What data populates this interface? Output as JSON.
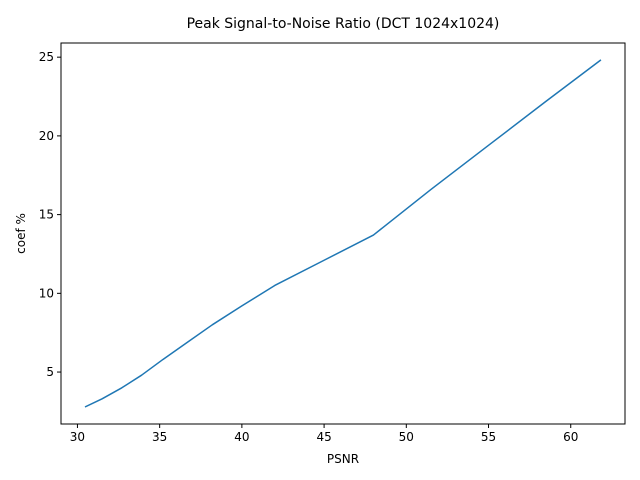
{
  "chart_data": {
    "type": "line",
    "title": "Peak Signal-to-Noise Ratio (DCT 1024x1024)",
    "xlabel": "PSNR",
    "ylabel": "coef %",
    "xlim": [
      29.0,
      63.3
    ],
    "ylim": [
      1.7,
      25.9
    ],
    "xticks": [
      30,
      35,
      40,
      45,
      50,
      55,
      60
    ],
    "yticks": [
      5,
      10,
      15,
      20,
      25
    ],
    "grid": false,
    "legend": "none",
    "series": [
      {
        "color": "#1f77b4",
        "x": [
          30.5,
          31.5,
          32.7,
          33.9,
          35.2,
          36.7,
          38.2,
          40.0,
          42.0,
          45.0,
          48.0,
          51.5,
          55.0,
          58.5,
          61.8
        ],
        "y": [
          2.8,
          3.3,
          4.0,
          4.8,
          5.8,
          6.9,
          8.0,
          9.2,
          10.5,
          12.1,
          13.7,
          16.6,
          19.4,
          22.2,
          24.8
        ]
      }
    ]
  }
}
